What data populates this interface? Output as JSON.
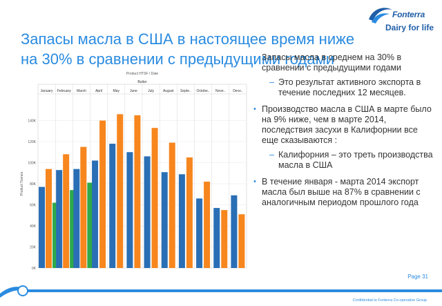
{
  "brand": {
    "name": "Fonterra",
    "tagline": "Dairy for life",
    "color": "#1f5ea8"
  },
  "title": {
    "line1": "Запасы масла в США в настоящее время ниже",
    "line2": "на 30% в сравнении с предыдущими годами",
    "color": "#2a8be0"
  },
  "bullets": [
    {
      "text": "Запасы масла в среднем на 30% в сравнении с предыдущими годами",
      "subs": [
        "Это результат активного экспорта в течение последних 12 месяцев."
      ]
    },
    {
      "text": "Производство масла в США в марте было на 9% ниже, чем в марте 2014, последствия засухи в Калифорнии все еще сказываются :",
      "subs": [
        "Калифорния – это треть производства масла в США"
      ]
    },
    {
      "text": "В течение января  - марта 2014 экспорт масла был выше на 87% в сравнении с аналогичным периодом прошлого года",
      "subs": []
    }
  ],
  "footer": {
    "page": "Page 31",
    "confidential": "Confidential to Fonterra Co-operative Group"
  },
  "chart_data": {
    "type": "bar",
    "title": "Product HTSF / Date",
    "subtitle": "Butter",
    "ylabel": "Product Tonnes",
    "ylim": [
      0,
      160000
    ],
    "yticks": [
      "0K",
      "20K",
      "40K",
      "60K",
      "80K",
      "100K",
      "120K",
      "140K"
    ],
    "categories": [
      "January",
      "February",
      "March",
      "April",
      "May",
      "June",
      "July",
      "August",
      "Septe..",
      "Octobe..",
      "Nove..",
      "Dece.."
    ],
    "series": [
      {
        "values": [
          77000,
          93000,
          94000,
          102000,
          118000,
          110000,
          106000,
          91000,
          89000,
          66000,
          57000,
          69000
        ]
      },
      {
        "values": [
          94000,
          108000,
          115000,
          140000,
          146000,
          145000,
          133000,
          119000,
          105000,
          82000,
          55000,
          51000
        ]
      },
      {
        "values": [
          62000,
          74000,
          81000,
          null,
          null,
          null,
          null,
          null,
          null,
          null,
          null,
          null
        ]
      }
    ],
    "colors": [
      "#2a6fb5",
      "#f7861e",
      "#2ea94a"
    ]
  }
}
